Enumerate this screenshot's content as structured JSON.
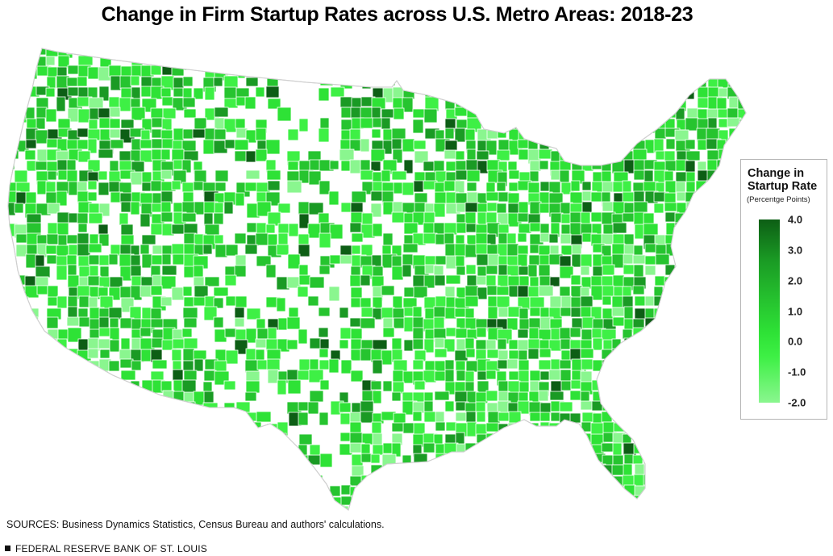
{
  "title": "Change in Firm Startup Rates across U.S. Metro Areas: 2018-23",
  "legend": {
    "title_line1": "Change in",
    "title_line2": "Startup Rate",
    "subtitle": "(Percentge Points)",
    "ticks": [
      "4.0",
      "3.0",
      "2.0",
      "1.0",
      "0.0",
      "-1.0",
      "-2.0"
    ],
    "min": -2.0,
    "max": 4.0,
    "colors": [
      "#0d5e15",
      "#1a9a24",
      "#26c42f",
      "#2ee236",
      "#3ef045",
      "#8af68f"
    ]
  },
  "map": {
    "outline_color": "#d8d8d8",
    "fill_color": "#ffffff"
  },
  "sources": "SOURCES: Business Dynamics Statistics, Census Bureau and authors' calculations.",
  "footer": "FEDERAL RESERVE BANK OF ST. LOUIS"
}
